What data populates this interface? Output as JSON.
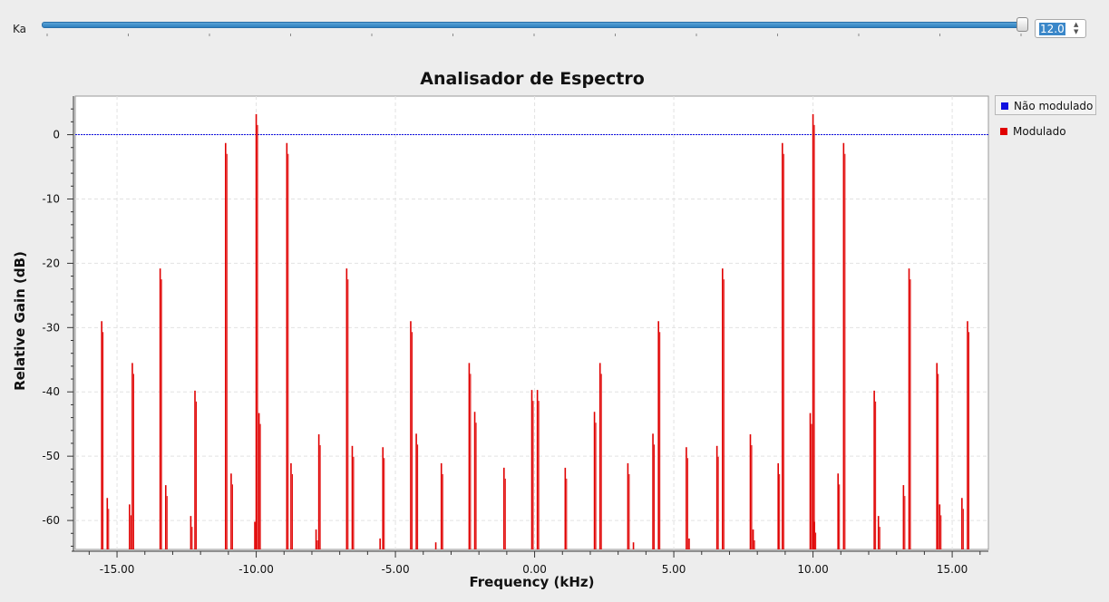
{
  "control": {
    "label": "Ka",
    "value": "12.0",
    "spin_up_glyph": "▲",
    "spin_down_glyph": "▼"
  },
  "colors": {
    "nao_modulado": "#1010e0",
    "modulado": "#e00000",
    "slider_accent": "#2f7fbf"
  },
  "chart_data": {
    "type": "line",
    "title": "Analisador de Espectro",
    "xlabel": "Frequency (kHz)",
    "ylabel": "Relative Gain (dB)",
    "xlim": [
      -16.5,
      16.3
    ],
    "ylim": [
      -64.5,
      6
    ],
    "x_ticks": [
      "-15.00",
      "-10.00",
      "-5.00",
      "0.00",
      "5.00",
      "10.00",
      "15.00"
    ],
    "x_tick_values": [
      -15,
      -10,
      -5,
      0,
      5,
      10,
      15
    ],
    "y_ticks": [
      "0",
      "-10",
      "-20",
      "-30",
      "-40",
      "-50",
      "-60"
    ],
    "y_tick_values": [
      0,
      -10,
      -20,
      -30,
      -40,
      -50,
      -60
    ],
    "grid": true,
    "legend_position": "right",
    "series": [
      {
        "name": "Não modulado",
        "type": "line",
        "x": [
          -16.5,
          16.3
        ],
        "y": [
          0,
          0
        ]
      },
      {
        "name": "Modulado",
        "type": "spikes",
        "peaks": [
          {
            "x": -15.55,
            "y": -29
          },
          {
            "x": -15.35,
            "y": -56.5
          },
          {
            "x": -14.55,
            "y": -57.5
          },
          {
            "x": -14.45,
            "y": -35.5
          },
          {
            "x": -13.45,
            "y": -20.8
          },
          {
            "x": -13.25,
            "y": -54.5
          },
          {
            "x": -12.35,
            "y": -59.3
          },
          {
            "x": -12.2,
            "y": -39.8
          },
          {
            "x": -11.1,
            "y": -1.3
          },
          {
            "x": -10.9,
            "y": -52.7
          },
          {
            "x": -10.05,
            "y": -60.2
          },
          {
            "x": -10.0,
            "y": 3.2
          },
          {
            "x": -9.9,
            "y": -43.3
          },
          {
            "x": -8.9,
            "y": -1.3
          },
          {
            "x": -8.75,
            "y": -51.1
          },
          {
            "x": -7.85,
            "y": -61.4
          },
          {
            "x": -7.75,
            "y": -46.6
          },
          {
            "x": -6.75,
            "y": -20.8
          },
          {
            "x": -6.55,
            "y": -48.4
          },
          {
            "x": -5.55,
            "y": -62.8
          },
          {
            "x": -5.45,
            "y": -48.6
          },
          {
            "x": -4.45,
            "y": -29
          },
          {
            "x": -4.25,
            "y": -46.5
          },
          {
            "x": -3.55,
            "y": -63.4
          },
          {
            "x": -3.35,
            "y": -51.1
          },
          {
            "x": -2.35,
            "y": -35.5
          },
          {
            "x": -2.15,
            "y": -43.1
          },
          {
            "x": -1.1,
            "y": -51.8
          },
          {
            "x": -0.1,
            "y": -39.7
          },
          {
            "x": 0.1,
            "y": -39.7
          },
          {
            "x": 1.1,
            "y": -51.8
          },
          {
            "x": 2.15,
            "y": -43.1
          },
          {
            "x": 2.35,
            "y": -35.5
          },
          {
            "x": 3.35,
            "y": -51.1
          },
          {
            "x": 3.55,
            "y": -63.4
          },
          {
            "x": 4.25,
            "y": -46.5
          },
          {
            "x": 4.45,
            "y": -29
          },
          {
            "x": 5.45,
            "y": -48.6
          },
          {
            "x": 5.55,
            "y": -62.8
          },
          {
            "x": 6.55,
            "y": -48.4
          },
          {
            "x": 6.75,
            "y": -20.8
          },
          {
            "x": 7.75,
            "y": -46.6
          },
          {
            "x": 7.85,
            "y": -61.4
          },
          {
            "x": 8.75,
            "y": -51.1
          },
          {
            "x": 8.9,
            "y": -1.3
          },
          {
            "x": 9.9,
            "y": -43.3
          },
          {
            "x": 10.0,
            "y": 3.2
          },
          {
            "x": 10.05,
            "y": -60.2
          },
          {
            "x": 10.9,
            "y": -52.7
          },
          {
            "x": 11.1,
            "y": -1.3
          },
          {
            "x": 12.2,
            "y": -39.8
          },
          {
            "x": 12.35,
            "y": -59.3
          },
          {
            "x": 13.25,
            "y": -54.5
          },
          {
            "x": 13.45,
            "y": -20.8
          },
          {
            "x": 14.45,
            "y": -35.5
          },
          {
            "x": 14.55,
            "y": -57.5
          },
          {
            "x": 15.35,
            "y": -56.5
          },
          {
            "x": 15.55,
            "y": -29
          }
        ]
      }
    ]
  }
}
